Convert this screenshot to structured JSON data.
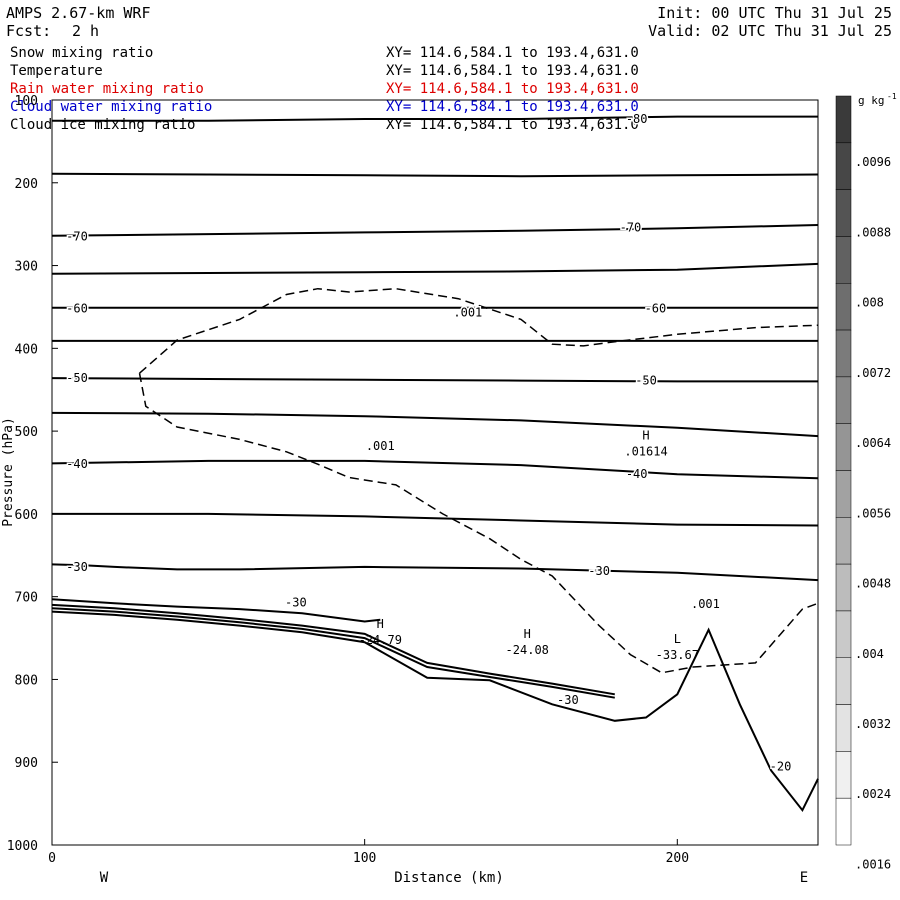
{
  "header": {
    "model": "AMPS 2.67-km WRF",
    "fcst_label": "Fcst:",
    "fcst_value": "2 h",
    "init": "Init: 00 UTC Thu 31 Jul 25",
    "valid": "Valid: 02 UTC Thu 31 Jul 25"
  },
  "legend": [
    {
      "name": "Snow mixing ratio",
      "xy": "XY= 114.6,584.1 to 193.4,631.0",
      "color": "#000000"
    },
    {
      "name": "Temperature",
      "xy": "XY= 114.6,584.1 to 193.4,631.0",
      "color": "#000000"
    },
    {
      "name": "Rain water mixing ratio",
      "xy": "XY= 114.6,584.1 to 193.4,631.0",
      "color": "#dd0000"
    },
    {
      "name": "Cloud water mixing ratio",
      "xy": "XY= 114.6,584.1 to 193.4,631.0",
      "color": "#0000cc"
    },
    {
      "name": "Cloud ice mixing ratio",
      "xy": "XY= 114.6,584.1 to 193.4,631.0",
      "color": "#000000"
    }
  ],
  "chart_data": {
    "type": "line",
    "title": "",
    "xlabel": "Distance (km)",
    "ylabel": "Pressure (hPa)",
    "xlim": [
      0,
      245
    ],
    "ylim": [
      100,
      1000
    ],
    "y_reversed": true,
    "xticks": [
      0,
      100,
      200
    ],
    "yticks": [
      100,
      200,
      300,
      400,
      500,
      600,
      700,
      800,
      900,
      1000
    ],
    "x_end_labels": {
      "left": "W",
      "right": "E"
    },
    "grid": false,
    "colorbar": {
      "units": "g kg",
      "units_exp": "-1",
      "labels": [
        ".0096",
        ".0088",
        ".008",
        ".0072",
        ".0064",
        ".0056",
        ".0048",
        ".004",
        ".0032",
        ".0024",
        ".0016"
      ],
      "colors": [
        "#3a3a3a",
        "#474747",
        "#545454",
        "#616161",
        "#6e6e6e",
        "#7b7b7b",
        "#888888",
        "#959595",
        "#a2a2a2",
        "#afafaf",
        "#bcbcbc",
        "#c9c9c9",
        "#d6d6d6",
        "#e3e3e3",
        "#f0f0f0",
        "#ffffff"
      ]
    },
    "temperature_lines": [
      {
        "x": [
          0,
          50,
          100,
          150,
          200,
          245
        ],
        "y": [
          125,
          125,
          123,
          123,
          120,
          120
        ]
      },
      {
        "x": [
          0,
          50,
          100,
          150,
          200,
          245
        ],
        "y": [
          189,
          190,
          191,
          192,
          191,
          190
        ]
      },
      {
        "x": [
          0,
          50,
          100,
          150,
          200,
          245
        ],
        "y": [
          264,
          262,
          260,
          258,
          255,
          251
        ]
      },
      {
        "x": [
          0,
          50,
          100,
          150,
          200,
          245
        ],
        "y": [
          310,
          309,
          308,
          307,
          305,
          298
        ]
      },
      {
        "x": [
          0,
          50,
          100,
          150,
          200,
          245
        ],
        "y": [
          351,
          351,
          351,
          351,
          351,
          351
        ]
      },
      {
        "x": [
          0,
          50,
          100,
          150,
          200,
          245
        ],
        "y": [
          391,
          391,
          391,
          391,
          391,
          391
        ]
      },
      {
        "x": [
          0,
          50,
          100,
          150,
          200,
          245
        ],
        "y": [
          436,
          437,
          438,
          439,
          440,
          440
        ]
      },
      {
        "x": [
          0,
          50,
          100,
          150,
          200,
          245
        ],
        "y": [
          478,
          479,
          482,
          487,
          496,
          506
        ]
      },
      {
        "x": [
          0,
          50,
          100,
          150,
          200,
          245
        ],
        "y": [
          539,
          536,
          536,
          541,
          552,
          557
        ]
      },
      {
        "x": [
          0,
          50,
          100,
          150,
          200,
          245
        ],
        "y": [
          600,
          600,
          603,
          608,
          613,
          614
        ]
      },
      {
        "x": [
          0,
          10,
          20,
          40,
          60,
          100,
          150,
          200,
          245
        ],
        "y": [
          661,
          662,
          664,
          667,
          667,
          664,
          666,
          671,
          680
        ]
      },
      {
        "x": [
          0,
          20,
          40,
          60,
          80,
          100,
          105
        ],
        "y": [
          703,
          708,
          712,
          715,
          720,
          730,
          728
        ]
      },
      {
        "x": [
          0,
          20,
          40,
          60,
          80,
          100,
          120,
          140,
          160,
          180
        ],
        "y": [
          710,
          714,
          720,
          727,
          735,
          745,
          780,
          793,
          805,
          818
        ]
      },
      {
        "x": [
          0,
          20,
          40,
          60,
          80,
          100,
          120,
          140,
          160,
          180
        ],
        "y": [
          714,
          718,
          724,
          731,
          739,
          750,
          785,
          797,
          809,
          822
        ]
      },
      {
        "x": [
          0,
          20,
          40,
          60,
          80,
          100,
          120,
          140,
          160,
          180,
          190,
          200,
          210,
          220,
          230,
          240,
          245
        ],
        "y": [
          718,
          722,
          728,
          735,
          743,
          755,
          798,
          801,
          830,
          850,
          846,
          818,
          740,
          830,
          910,
          958,
          920
        ]
      }
    ],
    "contour_labels": [
      {
        "text": "-80",
        "x": 187,
        "y": 123
      },
      {
        "text": "-70",
        "x": 8,
        "y": 265
      },
      {
        "text": "-70",
        "x": 185,
        "y": 254
      },
      {
        "text": "-60",
        "x": 8,
        "y": 352
      },
      {
        "text": "-60",
        "x": 193,
        "y": 352
      },
      {
        "text": "-50",
        "x": 8,
        "y": 436
      },
      {
        "text": "-50",
        "x": 190,
        "y": 439
      },
      {
        "text": "-40",
        "x": 8,
        "y": 540
      },
      {
        "text": "-40",
        "x": 187,
        "y": 552
      },
      {
        "text": "-30",
        "x": 8,
        "y": 664
      },
      {
        "text": "-30",
        "x": 175,
        "y": 669
      },
      {
        "text": "-30",
        "x": 78,
        "y": 707
      },
      {
        "text": "-30",
        "x": 165,
        "y": 825
      },
      {
        "text": "-20",
        "x": 233,
        "y": 905
      }
    ],
    "cloud_ice_contour": {
      "level": ".001",
      "x": [
        28,
        30,
        40,
        60,
        75,
        85,
        95,
        110,
        125,
        140,
        150,
        160,
        175,
        185,
        195,
        205,
        225,
        240,
        245
      ],
      "y": [
        430,
        470,
        495,
        510,
        525,
        540,
        556,
        565,
        600,
        630,
        655,
        675,
        735,
        770,
        792,
        785,
        780,
        715,
        708
      ],
      "labels": [
        {
          "text": ".001",
          "x": 105,
          "y": 518
        },
        {
          "text": ".001",
          "x": 209,
          "y": 709
        }
      ]
    },
    "snow_contour": {
      "level": ".001",
      "x": [
        28,
        40,
        60,
        75,
        85,
        95,
        110,
        130,
        150,
        160,
        170,
        180,
        200,
        225,
        245
      ],
      "y": [
        430,
        390,
        365,
        335,
        328,
        332,
        328,
        340,
        365,
        395,
        397,
        392,
        383,
        375,
        372
      ],
      "labels": [
        {
          "text": ".001",
          "x": 133,
          "y": 357
        }
      ]
    },
    "extrema": [
      {
        "type": "H",
        "value": "-24.79",
        "x": 105,
        "y": 750
      },
      {
        "type": "H",
        "value": "-24.08",
        "x": 152,
        "y": 762
      },
      {
        "type": "L",
        "value": "-33.67",
        "x": 200,
        "y": 768
      },
      {
        "type": "H",
        "value": ".01614",
        "x": 190,
        "y": 522
      }
    ]
  }
}
